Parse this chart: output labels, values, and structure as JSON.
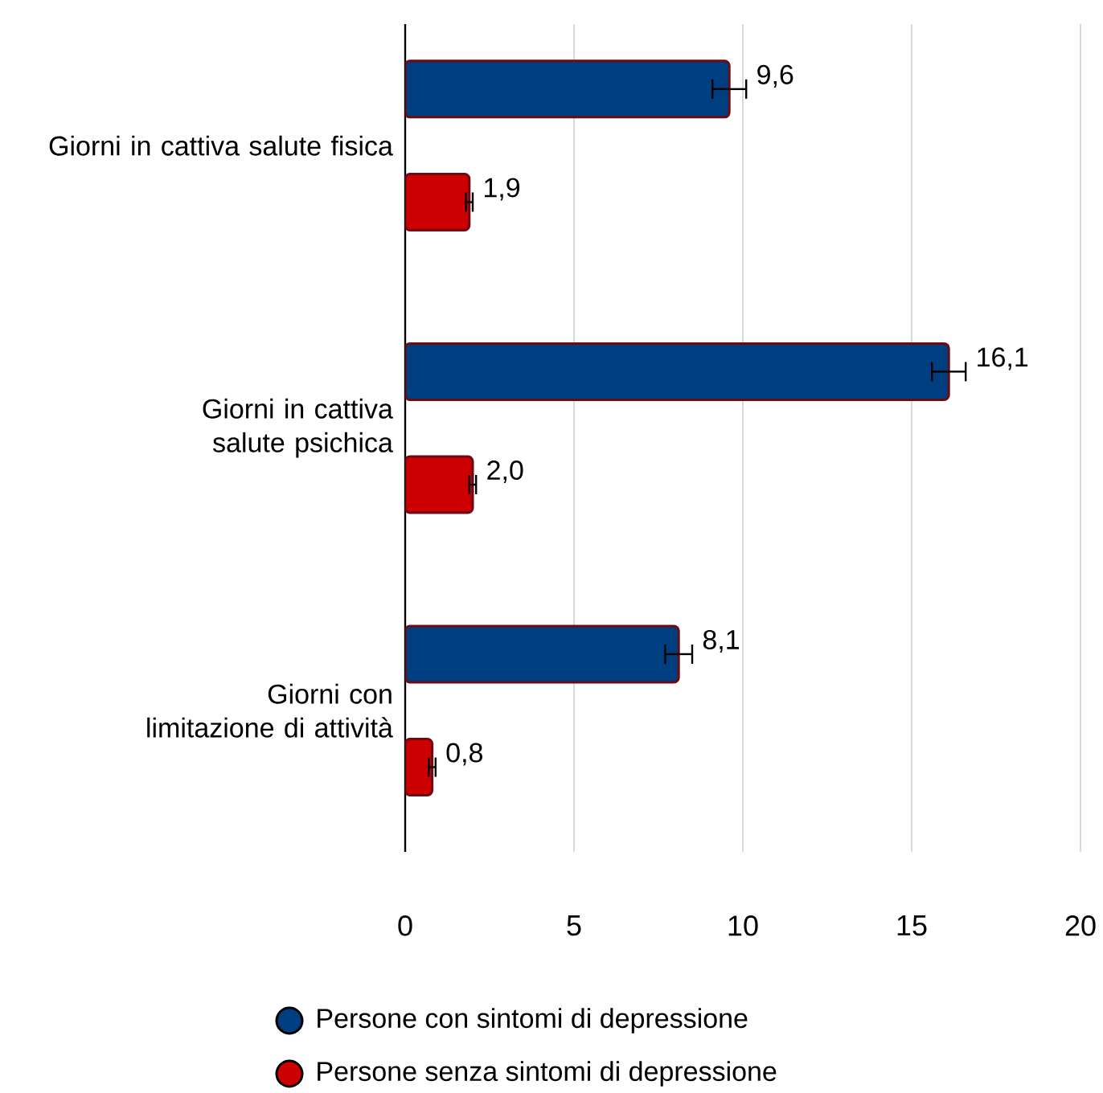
{
  "chart_data": {
    "type": "bar",
    "orientation": "horizontal",
    "categories": [
      "Giorni in cattiva salute fisica",
      "Giorni in cattiva salute psichica",
      "Giorni con limitazione di attività"
    ],
    "series": [
      {
        "name": "Persone con sintomi di depressione",
        "color": "#003f7f",
        "values": [
          9.6,
          16.1,
          8.1
        ],
        "errors": [
          0.5,
          0.5,
          0.4
        ],
        "value_labels": [
          "9,6",
          "16,1",
          "8,1"
        ]
      },
      {
        "name": "Persone senza sintomi di depressione",
        "color": "#cc0000",
        "values": [
          1.9,
          2.0,
          0.8
        ],
        "errors": [
          0.1,
          0.1,
          0.1
        ],
        "value_labels": [
          "1,9",
          "2,0",
          "0,8"
        ]
      }
    ],
    "xlim": [
      0,
      20
    ],
    "xticks": [
      0,
      5,
      10,
      15,
      20
    ],
    "grid": "x",
    "legend": "bottom"
  }
}
